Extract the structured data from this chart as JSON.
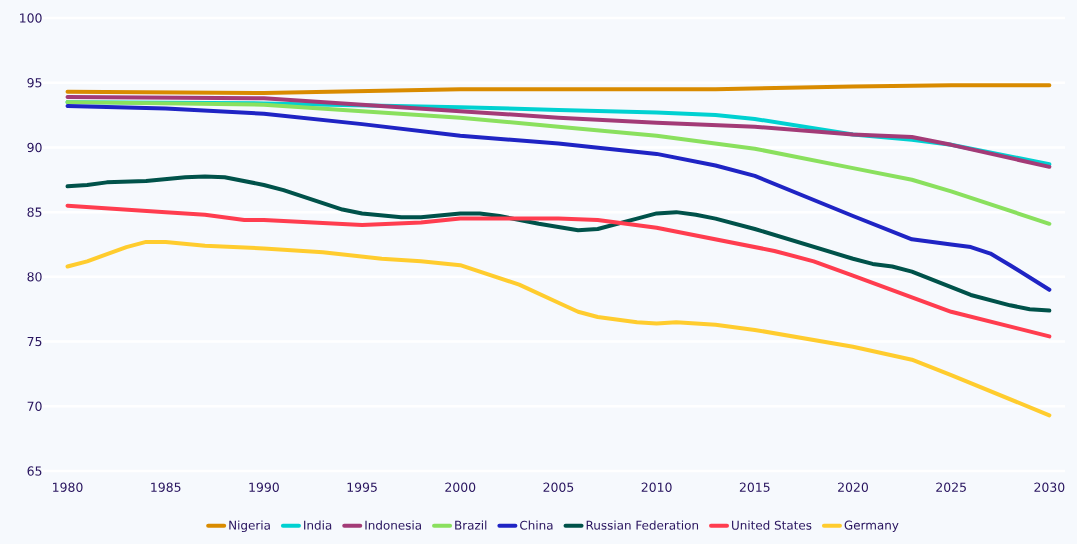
{
  "chart_data": {
    "type": "line",
    "xlim": [
      1978.7,
      2030.8
    ],
    "ylim": [
      65,
      100
    ],
    "xticks": [
      1980,
      1985,
      1990,
      1995,
      2000,
      2005,
      2010,
      2015,
      2020,
      2025,
      2030
    ],
    "yticks": [
      65,
      70,
      75,
      80,
      85,
      90,
      95,
      100
    ],
    "grid": "y",
    "legend": "bottom",
    "marker": "none",
    "line_style": "solid",
    "series": [
      {
        "name": "Nigeria",
        "color": "#d98b00",
        "x": [
          1980,
          1990,
          2000,
          2010,
          2013,
          2020,
          2025,
          2030
        ],
        "values": [
          94.3,
          94.2,
          94.5,
          94.5,
          94.5,
          94.7,
          94.8,
          94.8
        ]
      },
      {
        "name": "India",
        "color": "#00d1d1",
        "x": [
          1980,
          1990,
          2000,
          2005,
          2010,
          2013,
          2015,
          2020,
          2023,
          2025,
          2030
        ],
        "values": [
          93.5,
          93.4,
          93.1,
          92.9,
          92.7,
          92.5,
          92.2,
          91.0,
          90.6,
          90.2,
          88.7
        ]
      },
      {
        "name": "Indonesia",
        "color": "#a33b77",
        "x": [
          1980,
          1990,
          1995,
          2000,
          2005,
          2010,
          2015,
          2020,
          2023,
          2025,
          2030
        ],
        "values": [
          93.9,
          93.8,
          93.3,
          92.8,
          92.3,
          91.9,
          91.6,
          91.0,
          90.8,
          90.2,
          88.5
        ]
      },
      {
        "name": "Brazil",
        "color": "#8ae05e",
        "x": [
          1980,
          1990,
          1995,
          2000,
          2005,
          2010,
          2015,
          2020,
          2023,
          2025,
          2030
        ],
        "values": [
          93.5,
          93.3,
          92.8,
          92.3,
          91.6,
          90.9,
          89.9,
          88.4,
          87.5,
          86.6,
          84.1
        ]
      },
      {
        "name": "China",
        "color": "#1f24c4",
        "x": [
          1980,
          1985,
          1990,
          1995,
          2000,
          2005,
          2010,
          2013,
          2015,
          2020,
          2023,
          2025,
          2026,
          2027,
          2028,
          2030
        ],
        "values": [
          93.2,
          93.0,
          92.6,
          91.8,
          90.9,
          90.3,
          89.5,
          88.6,
          87.8,
          84.7,
          82.9,
          82.5,
          82.3,
          81.8,
          80.9,
          79.0
        ]
      },
      {
        "name": "Russian Federation",
        "color": "#00524a",
        "x": [
          1980,
          1981,
          1982,
          1984,
          1986,
          1987,
          1988,
          1990,
          1991,
          1993,
          1994,
          1995,
          1997,
          1998,
          2000,
          2001,
          2002,
          2004,
          2006,
          2007,
          2009,
          2010,
          2011,
          2012,
          2013,
          2015,
          2020,
          2021,
          2022,
          2023,
          2025,
          2026,
          2027,
          2028,
          2029,
          2030
        ],
        "values": [
          87.0,
          87.1,
          87.3,
          87.4,
          87.7,
          87.75,
          87.7,
          87.1,
          86.7,
          85.7,
          85.2,
          84.9,
          84.6,
          84.6,
          84.9,
          84.9,
          84.7,
          84.1,
          83.6,
          83.7,
          84.5,
          84.9,
          85.0,
          84.8,
          84.5,
          83.7,
          81.4,
          81.0,
          80.8,
          80.4,
          79.2,
          78.6,
          78.2,
          77.8,
          77.5,
          77.4
        ]
      },
      {
        "name": "United States",
        "color": "#ff3d4f",
        "x": [
          1980,
          1985,
          1987,
          1989,
          1990,
          1995,
          1998,
          2000,
          2005,
          2007,
          2010,
          2013,
          2015,
          2016,
          2018,
          2020,
          2025,
          2030
        ],
        "values": [
          85.5,
          85.0,
          84.8,
          84.4,
          84.4,
          84.0,
          84.2,
          84.5,
          84.5,
          84.4,
          83.8,
          82.9,
          82.3,
          82.0,
          81.2,
          80.1,
          77.3,
          75.4
        ]
      },
      {
        "name": "Germany",
        "color": "#ffcc2e",
        "x": [
          1980,
          1981,
          1983,
          1984,
          1985,
          1987,
          1990,
          1993,
          1996,
          1998,
          2000,
          2003,
          2005,
          2006,
          2007,
          2009,
          2010,
          2011,
          2012,
          2013,
          2015,
          2020,
          2023,
          2025,
          2030
        ],
        "values": [
          80.8,
          81.2,
          82.3,
          82.7,
          82.7,
          82.4,
          82.2,
          81.9,
          81.4,
          81.2,
          80.9,
          79.4,
          78.0,
          77.3,
          76.9,
          76.5,
          76.4,
          76.5,
          76.4,
          76.3,
          75.9,
          74.6,
          73.6,
          72.4,
          69.3
        ]
      }
    ]
  }
}
